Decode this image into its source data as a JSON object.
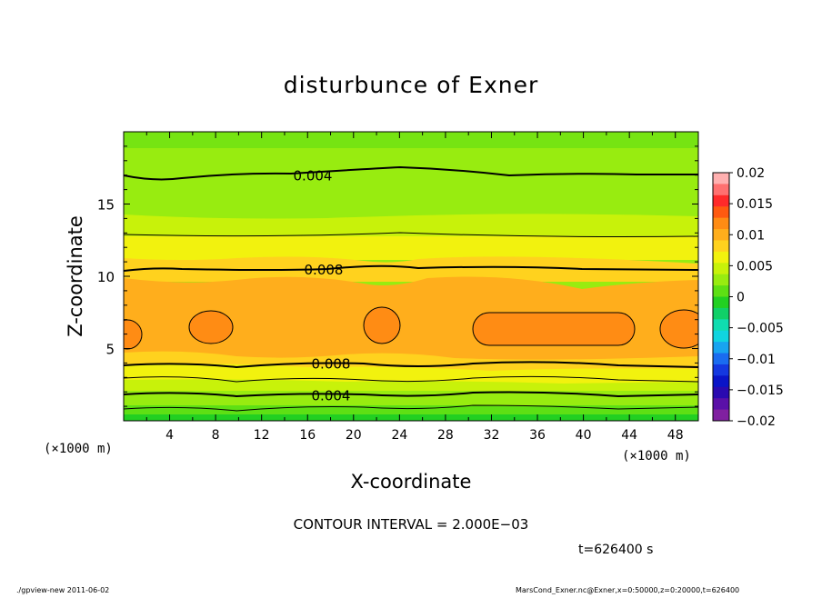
{
  "chart_data": {
    "type": "contour",
    "title": "disturbunce of Exner",
    "xlabel": "X-coordinate",
    "ylabel": "Z-coordinate",
    "x_unit_left": "(×1000 m)",
    "x_unit_right": "(×1000 m)",
    "xlim": [
      0,
      50
    ],
    "ylim": [
      0,
      20
    ],
    "x_ticks": [
      4,
      8,
      12,
      16,
      20,
      24,
      28,
      32,
      36,
      40,
      44,
      48
    ],
    "y_ticks": [
      5,
      10,
      15
    ],
    "colorbar": {
      "levels": [
        0.02,
        0.015,
        0.01,
        0.005,
        0,
        -0.005,
        -0.01,
        -0.015,
        -0.02
      ],
      "labels": [
        "0.02",
        "0.015",
        "0.01",
        "0.005",
        "0",
        "−0.005",
        "−0.01",
        "−0.015",
        "−0.02"
      ],
      "colors": [
        "#ffb0b0",
        "#ff7070",
        "#ff2a2a",
        "#ff5a10",
        "#ff8c14",
        "#ffae1c",
        "#ffd21e",
        "#f2f20e",
        "#c8f20a",
        "#98ec10",
        "#5ee014",
        "#22d022",
        "#10d068",
        "#10dcb0",
        "#10d4e0",
        "#18a4f0",
        "#1a6cf0",
        "#1438e0",
        "#0a14c8",
        "#2a0ab0",
        "#5a10a8",
        "#8020a0"
      ]
    },
    "contour_labels": [
      {
        "text": "0.004",
        "x": 20,
        "z": 17
      },
      {
        "text": "0.008",
        "x": 20,
        "z": 10.5
      },
      {
        "text": "0.008",
        "x": 20,
        "z": 4
      },
      {
        "text": "0.004",
        "x": 20,
        "z": 1.8
      }
    ]
  },
  "footer": {
    "contour_interval": "CONTOUR INTERVAL = 2.000E−03",
    "time": "t=626400 s",
    "script_info": "./gpview-new   2011-06-02",
    "file_info": "MarsCond_Exner.nc@Exner,x=0:50000,z=0:20000,t=626400"
  }
}
